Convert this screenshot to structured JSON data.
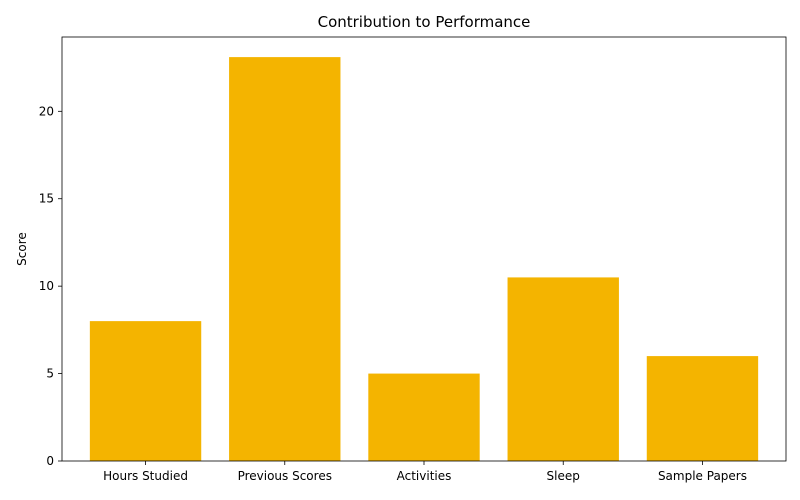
{
  "chart_data": {
    "type": "bar",
    "title": "Contribution to Performance",
    "xlabel": "",
    "ylabel": "Score",
    "categories": [
      "Hours Studied",
      "Previous Scores",
      "Activities",
      "Sleep",
      "Sample Papers"
    ],
    "values": [
      8.0,
      23.1,
      5.0,
      10.5,
      6.0
    ],
    "ylim": [
      0,
      24.25
    ],
    "yticks": [
      0,
      5,
      10,
      15,
      20
    ],
    "bar_color": "#f4b400",
    "grid": false,
    "legend": "none"
  }
}
